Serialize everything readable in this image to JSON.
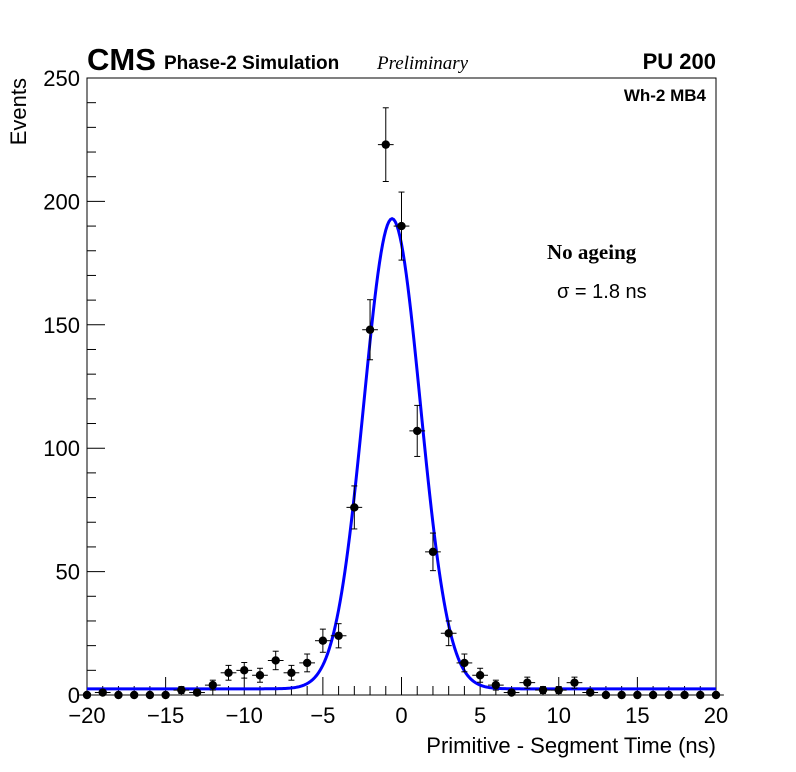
{
  "header": {
    "experiment": "CMS",
    "subtitle": "Phase-2 Simulation",
    "status": "Preliminary",
    "pileup": "PU 200",
    "chamber": "Wh-2 MB4"
  },
  "annotations": {
    "condition": "No ageing",
    "sigma": "σ = 1.8 ns"
  },
  "chart_data": {
    "type": "scatter",
    "title": "",
    "xlabel": "Primitive - Segment Time (ns)",
    "ylabel": "Events",
    "xlim": [
      -20,
      20
    ],
    "ylim": [
      0,
      250
    ],
    "x_ticks": [
      -20,
      -15,
      -10,
      -5,
      0,
      5,
      10,
      15,
      20
    ],
    "x_tick_labels": [
      "−20",
      "−15",
      "−10",
      "−5",
      "0",
      "5",
      "10",
      "15",
      "20"
    ],
    "y_ticks": [
      0,
      50,
      100,
      150,
      200,
      250
    ],
    "y_tick_labels": [
      "0",
      "50",
      "100",
      "150",
      "200",
      "250"
    ],
    "bin_width": 1,
    "series": [
      {
        "name": "Simulation",
        "style": "points-with-error-bars",
        "color": "#000000",
        "x": [
          -20,
          -19,
          -18,
          -17,
          -16,
          -15,
          -14,
          -13,
          -12,
          -11,
          -10,
          -9,
          -8,
          -7,
          -6,
          -5,
          -4,
          -3,
          -2,
          -1,
          0,
          1,
          2,
          3,
          4,
          5,
          6,
          7,
          8,
          9,
          10,
          11,
          12,
          13,
          14,
          15,
          16,
          17,
          18,
          19,
          20
        ],
        "y": [
          0,
          1,
          0,
          0,
          0,
          0,
          2,
          1,
          4,
          9,
          10,
          8,
          14,
          9,
          13,
          22,
          24,
          76,
          148,
          223,
          190,
          107,
          58,
          25,
          13,
          8,
          4,
          1,
          5,
          2,
          2,
          5,
          1,
          0,
          0,
          0,
          0,
          0,
          0,
          0,
          0
        ]
      },
      {
        "name": "Gaussian fit",
        "style": "line",
        "color": "#0000ff",
        "function": "gaussian+constant",
        "amplitude": 190.5,
        "mean": -0.6,
        "sigma": 1.8,
        "constant": 2.5
      }
    ]
  }
}
